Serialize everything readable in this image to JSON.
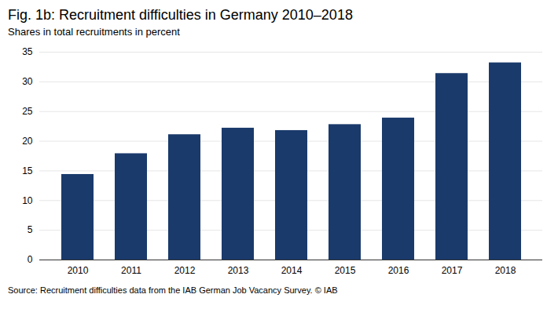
{
  "chart_data": {
    "type": "bar",
    "title": "Fig. 1b: Recruitment difficulties in Germany 2010–2018",
    "subtitle": "Shares in total recruitments in percent",
    "source": "Source: Recruitment difficulties data from the IAB German Job Vacancy Survey. © IAB",
    "categories": [
      "2010",
      "2011",
      "2012",
      "2013",
      "2014",
      "2015",
      "2016",
      "2017",
      "2018"
    ],
    "values": [
      14.4,
      17.9,
      21.1,
      22.2,
      21.8,
      22.8,
      23.9,
      31.4,
      33.2
    ],
    "color": "#1a3a6b",
    "ylim": [
      0,
      35
    ],
    "yticks": [
      0,
      5,
      10,
      15,
      20,
      25,
      30,
      35
    ],
    "grid": true
  }
}
